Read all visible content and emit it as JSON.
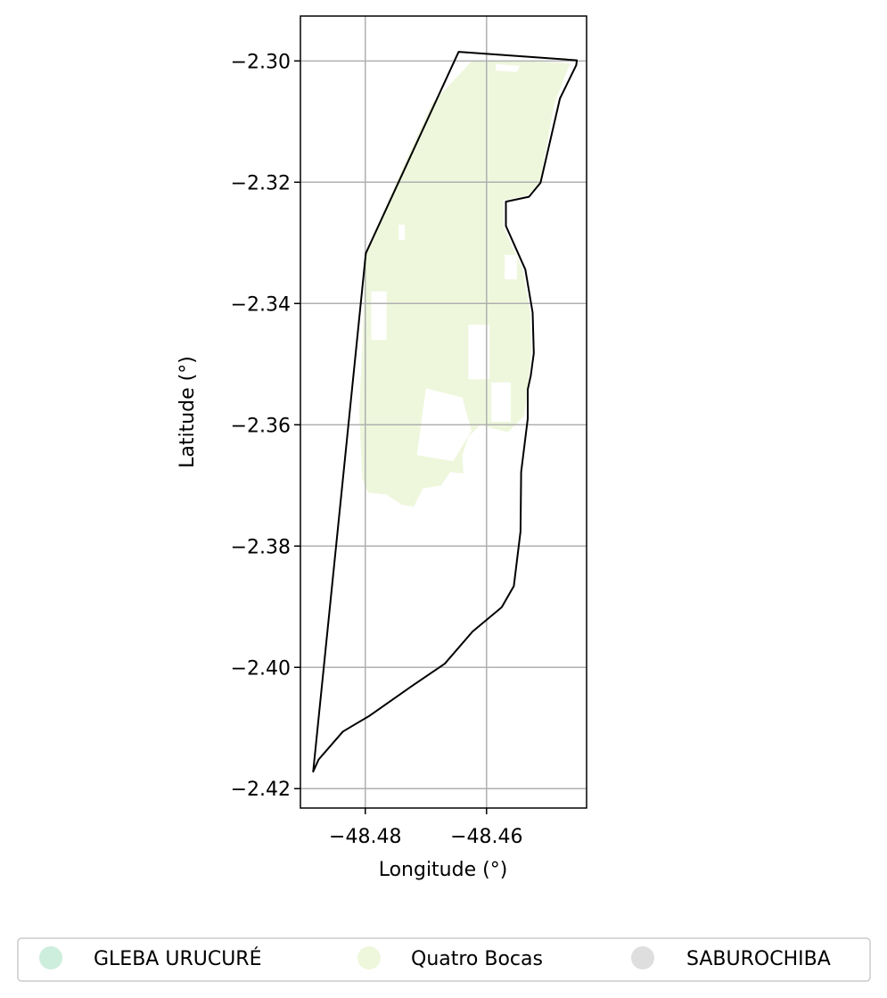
{
  "chart_data": {
    "type": "map",
    "xlabel": "Longitude (°)",
    "ylabel": "Latitude (°)",
    "xlim": [
      -48.4907,
      -48.4435
    ],
    "ylim": [
      -2.4232,
      -2.2926
    ],
    "xticks": [
      {
        "value": -48.48,
        "label": "−48.48"
      },
      {
        "value": -48.46,
        "label": "−48.46"
      }
    ],
    "yticks": [
      {
        "value": -2.3,
        "label": "−2.30"
      },
      {
        "value": -2.32,
        "label": "−2.32"
      },
      {
        "value": -2.34,
        "label": "−2.34"
      },
      {
        "value": -2.36,
        "label": "−2.36"
      },
      {
        "value": -2.38,
        "label": "−2.38"
      },
      {
        "value": -2.4,
        "label": "−2.40"
      },
      {
        "value": -2.42,
        "label": "−2.42"
      }
    ],
    "grid": true,
    "boundary": [
      [
        -48.4646,
        -2.2985
      ],
      [
        -48.4451,
        -2.2999
      ],
      [
        -48.4452,
        -2.3007
      ],
      [
        -48.4479,
        -2.3062
      ],
      [
        -48.4511,
        -2.3201
      ],
      [
        -48.453,
        -2.3224
      ],
      [
        -48.4568,
        -2.3232
      ],
      [
        -48.4568,
        -2.3272
      ],
      [
        -48.4536,
        -2.3344
      ],
      [
        -48.4524,
        -2.3415
      ],
      [
        -48.4522,
        -2.3482
      ],
      [
        -48.4527,
        -2.3519
      ],
      [
        -48.4532,
        -2.3542
      ],
      [
        -48.4532,
        -2.359
      ],
      [
        -48.4543,
        -2.3678
      ],
      [
        -48.4544,
        -2.3776
      ],
      [
        -48.4555,
        -2.3866
      ],
      [
        -48.4575,
        -2.3901
      ],
      [
        -48.4623,
        -2.3941
      ],
      [
        -48.4669,
        -2.3994
      ],
      [
        -48.4722,
        -2.403
      ],
      [
        -48.4793,
        -2.408
      ],
      [
        -48.4817,
        -2.4094
      ],
      [
        -48.4837,
        -2.4106
      ],
      [
        -48.4877,
        -2.4152
      ],
      [
        -48.4886,
        -2.4172
      ],
      [
        -48.4799,
        -2.3317
      ]
    ],
    "regions": [
      {
        "name": "Quatro Bocas",
        "color": "#eef7dc",
        "polygon": [
          [
            -48.4624,
            -2.3
          ],
          [
            -48.455,
            -2.3
          ],
          [
            -48.4462,
            -2.3004
          ],
          [
            -48.4488,
            -2.307
          ],
          [
            -48.4512,
            -2.32
          ],
          [
            -48.4532,
            -2.3222
          ],
          [
            -48.4572,
            -2.323
          ],
          [
            -48.4572,
            -2.3274
          ],
          [
            -48.454,
            -2.3345
          ],
          [
            -48.4528,
            -2.3415
          ],
          [
            -48.4526,
            -2.348
          ],
          [
            -48.4532,
            -2.354
          ],
          [
            -48.4538,
            -2.3585
          ],
          [
            -48.455,
            -2.3598
          ],
          [
            -48.4565,
            -2.3612
          ],
          [
            -48.459,
            -2.3606
          ],
          [
            -48.461,
            -2.36
          ],
          [
            -48.463,
            -2.362
          ],
          [
            -48.464,
            -2.365
          ],
          [
            -48.4638,
            -2.368
          ],
          [
            -48.466,
            -2.3678
          ],
          [
            -48.4675,
            -2.37
          ],
          [
            -48.4705,
            -2.3705
          ],
          [
            -48.472,
            -2.3735
          ],
          [
            -48.474,
            -2.3732
          ],
          [
            -48.4765,
            -2.3715
          ],
          [
            -48.4795,
            -2.3712
          ],
          [
            -48.4805,
            -2.369
          ],
          [
            -48.481,
            -2.358
          ],
          [
            -48.4805,
            -2.347
          ],
          [
            -48.48,
            -2.3318
          ],
          [
            -48.474,
            -2.318
          ],
          [
            -48.469,
            -2.307
          ]
        ],
        "holes": [
          [
            [
              -48.4585,
              -2.3005
            ],
            [
              -48.4545,
              -2.3008
            ],
            [
              -48.455,
              -2.3018
            ],
            [
              -48.4585,
              -2.3016
            ]
          ],
          [
            [
              -48.457,
              -2.332
            ],
            [
              -48.455,
              -2.332
            ],
            [
              -48.455,
              -2.336
            ],
            [
              -48.457,
              -2.336
            ]
          ],
          [
            [
              -48.463,
              -2.3435
            ],
            [
              -48.4595,
              -2.3435
            ],
            [
              -48.4595,
              -2.3525
            ],
            [
              -48.463,
              -2.3525
            ]
          ],
          [
            [
              -48.4592,
              -2.353
            ],
            [
              -48.456,
              -2.353
            ],
            [
              -48.456,
              -2.3595
            ],
            [
              -48.4592,
              -2.3595
            ]
          ],
          [
            [
              -48.47,
              -2.354
            ],
            [
              -48.464,
              -2.3555
            ],
            [
              -48.4625,
              -2.361
            ],
            [
              -48.4655,
              -2.366
            ],
            [
              -48.4715,
              -2.365
            ]
          ],
          [
            [
              -48.479,
              -2.338
            ],
            [
              -48.4765,
              -2.338
            ],
            [
              -48.4765,
              -2.346
            ],
            [
              -48.479,
              -2.346
            ]
          ],
          [
            [
              -48.4745,
              -2.327
            ],
            [
              -48.4735,
              -2.327
            ],
            [
              -48.4735,
              -2.3295
            ],
            [
              -48.4745,
              -2.3295
            ]
          ]
        ]
      }
    ],
    "legend": {
      "placement": "bottom-center",
      "entries": [
        {
          "label": "GLEBA URUCURÉ",
          "color": "#cdeedd"
        },
        {
          "label": "Quatro Bocas",
          "color": "#eef7dc"
        },
        {
          "label": "SABUROCHIBA",
          "color": "#dedede"
        }
      ]
    }
  }
}
